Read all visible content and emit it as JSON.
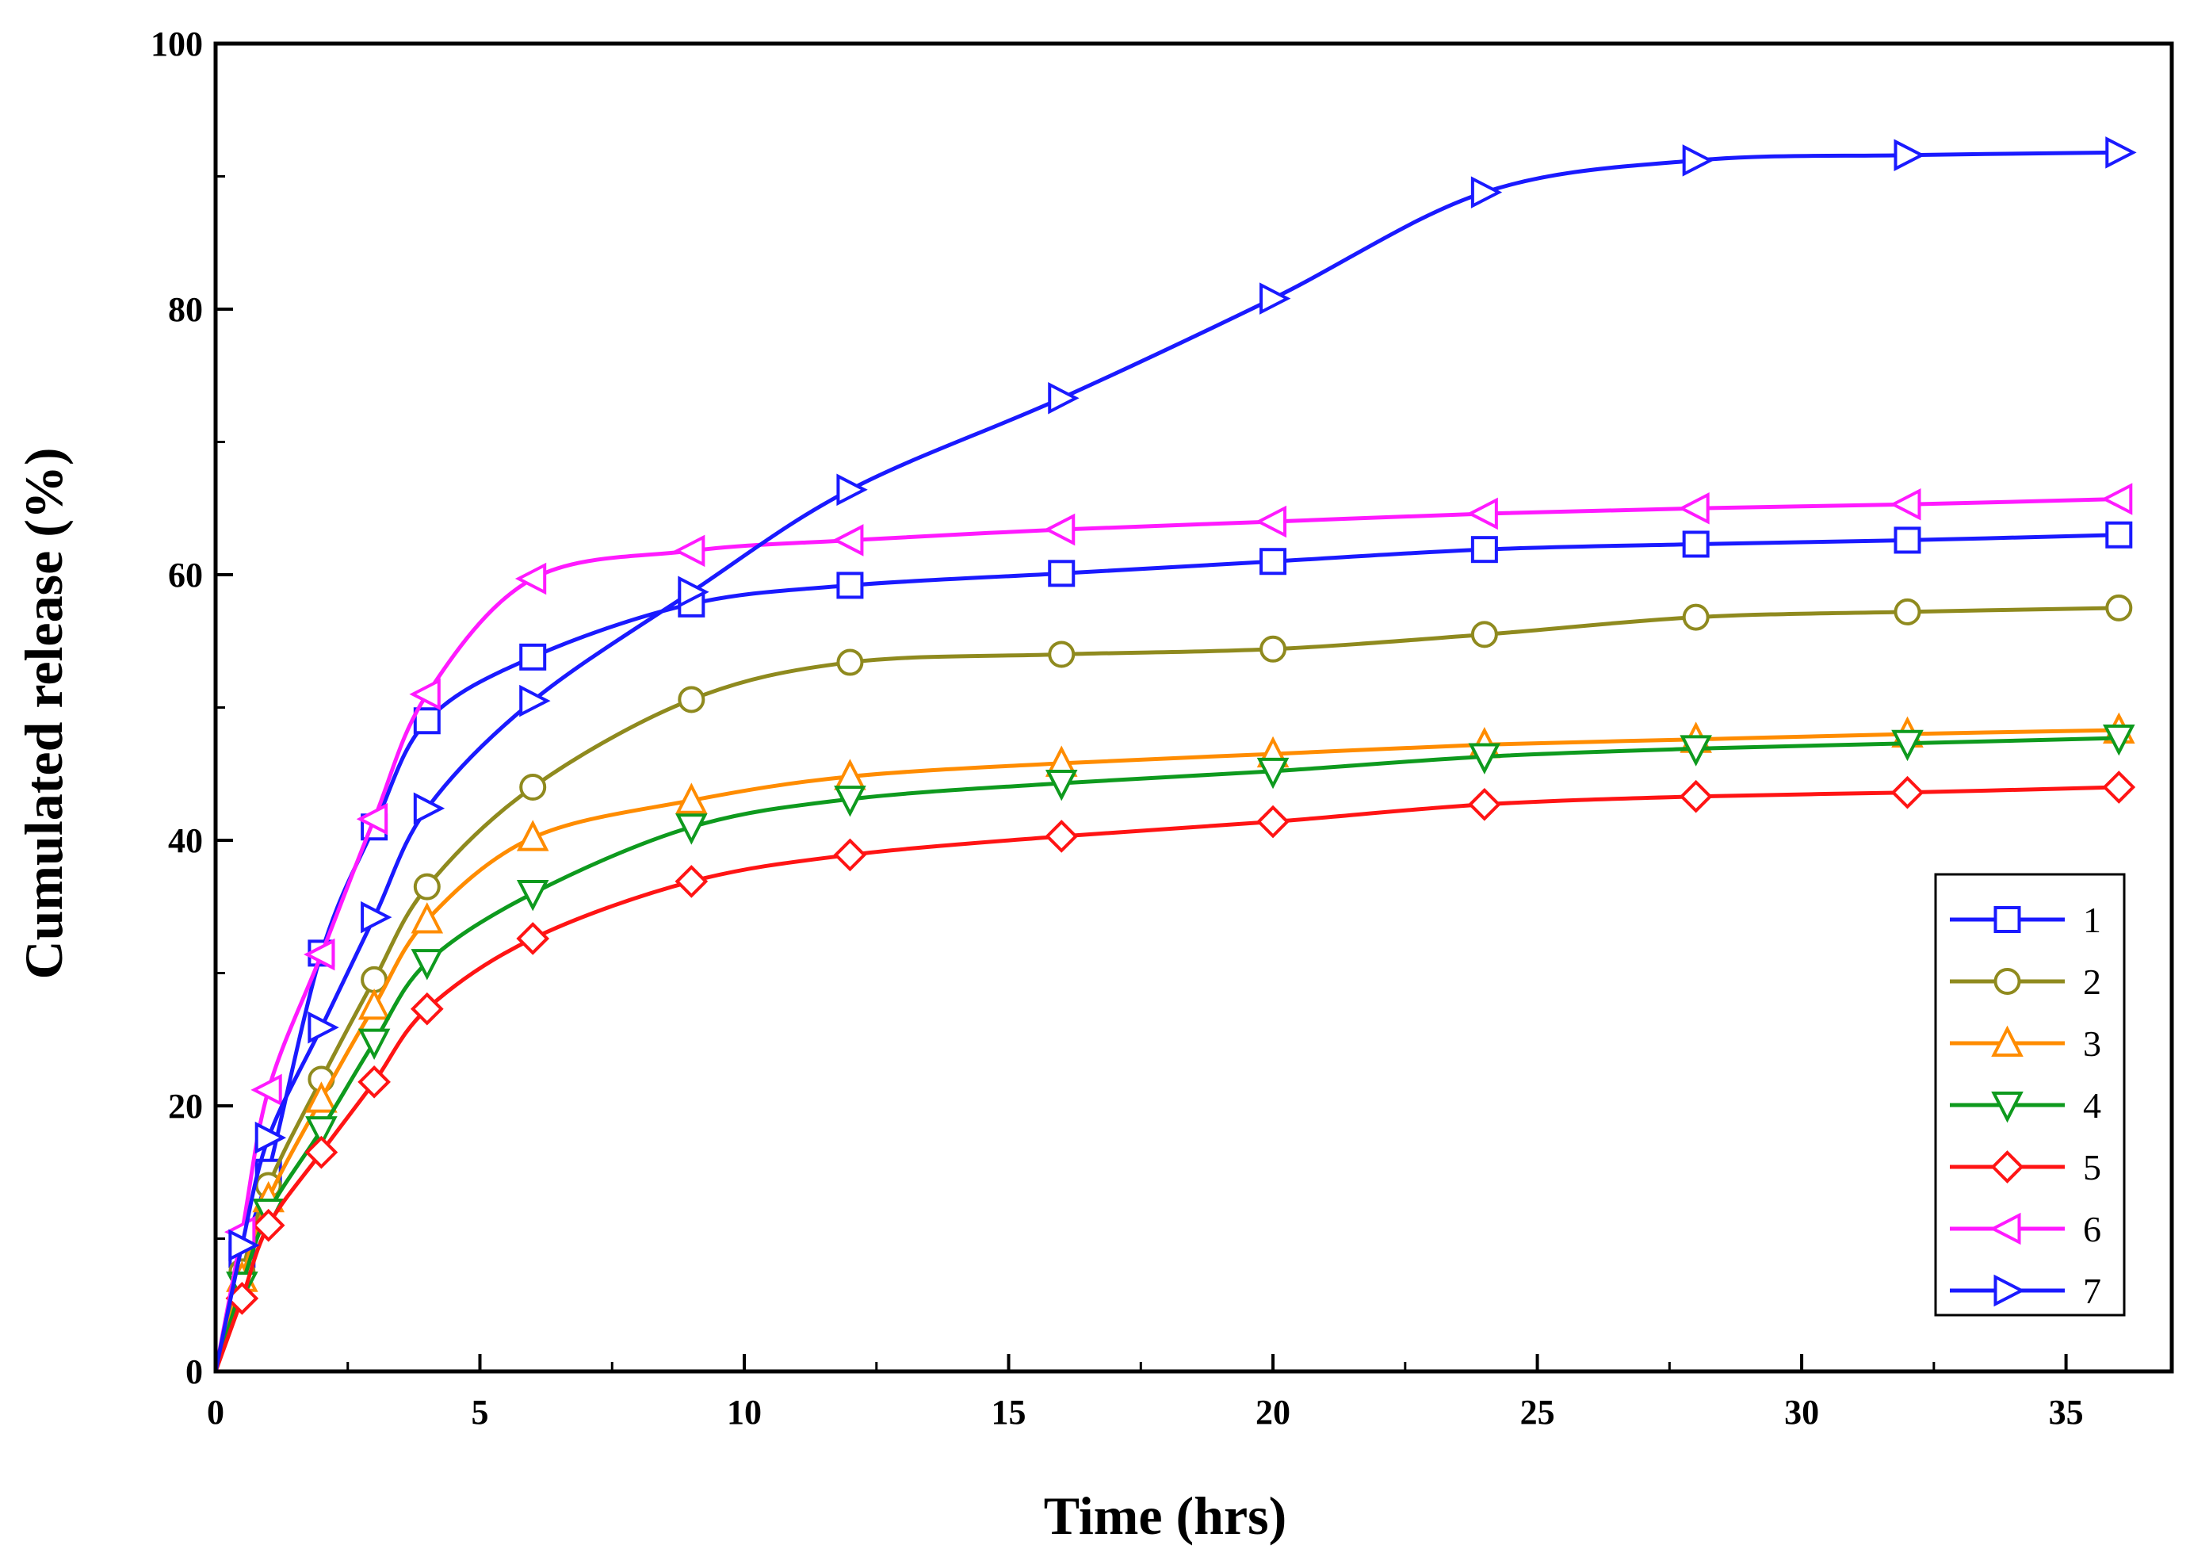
{
  "chart_data": {
    "type": "line",
    "title": "",
    "xlabel": "Time (hrs)",
    "ylabel": "Cumulated release (%)",
    "xlim": [
      0,
      37
    ],
    "ylim": [
      0,
      100
    ],
    "x_ticks": [
      0,
      5,
      10,
      15,
      20,
      25,
      30,
      35
    ],
    "y_ticks": [
      0,
      20,
      40,
      60,
      80,
      100
    ],
    "x_tick_labels": [
      "0",
      "5",
      "10",
      "15",
      "20",
      "25",
      "30",
      "35"
    ],
    "y_tick_labels": [
      "0",
      "20",
      "40",
      "60",
      "80",
      "100"
    ],
    "grid": false,
    "legend_position": "bottom-right",
    "x": [
      0,
      0.5,
      1,
      2,
      3,
      4,
      6,
      9,
      12,
      16,
      20,
      24,
      28,
      32,
      36
    ],
    "series": [
      {
        "name": "1",
        "color": "#1a1aff",
        "marker": "square",
        "values": [
          0,
          8.8,
          15.0,
          31.5,
          41.0,
          49.0,
          53.8,
          57.8,
          59.2,
          60.1,
          61.0,
          61.9,
          62.3,
          62.6,
          63.0
        ]
      },
      {
        "name": "2",
        "color": "#8f8a1e",
        "marker": "circle",
        "values": [
          0,
          7.5,
          14.0,
          22.0,
          29.5,
          36.5,
          44.0,
          50.6,
          53.4,
          54.0,
          54.4,
          55.5,
          56.8,
          57.2,
          57.5
        ]
      },
      {
        "name": "3",
        "color": "#ff8c00",
        "marker": "triangle-up",
        "values": [
          0,
          7.0,
          13.0,
          20.5,
          27.5,
          34.0,
          40.2,
          43.0,
          44.8,
          45.8,
          46.5,
          47.2,
          47.6,
          48.0,
          48.3
        ]
      },
      {
        "name": "4",
        "color": "#0e9a1e",
        "marker": "triangle-down",
        "values": [
          0,
          6.5,
          12.0,
          18.2,
          24.8,
          30.8,
          36.0,
          41.0,
          43.1,
          44.3,
          45.2,
          46.3,
          46.9,
          47.3,
          47.7
        ]
      },
      {
        "name": "5",
        "color": "#ff1414",
        "marker": "diamond",
        "values": [
          0,
          5.5,
          11.0,
          16.5,
          21.8,
          27.3,
          32.6,
          36.9,
          38.9,
          40.3,
          41.4,
          42.7,
          43.3,
          43.6,
          44.0
        ]
      },
      {
        "name": "6",
        "color": "#ff1aff",
        "marker": "triangle-left",
        "values": [
          0,
          10.5,
          21.2,
          31.4,
          41.6,
          51.0,
          59.7,
          61.8,
          62.6,
          63.4,
          64.0,
          64.6,
          65.0,
          65.3,
          65.7
        ]
      },
      {
        "name": "7",
        "color": "#1a1aff",
        "marker": "triangle-right",
        "values": [
          0,
          9.5,
          17.6,
          25.9,
          34.2,
          42.4,
          50.5,
          58.7,
          66.4,
          73.3,
          80.8,
          88.8,
          91.2,
          91.6,
          91.8
        ]
      }
    ]
  }
}
